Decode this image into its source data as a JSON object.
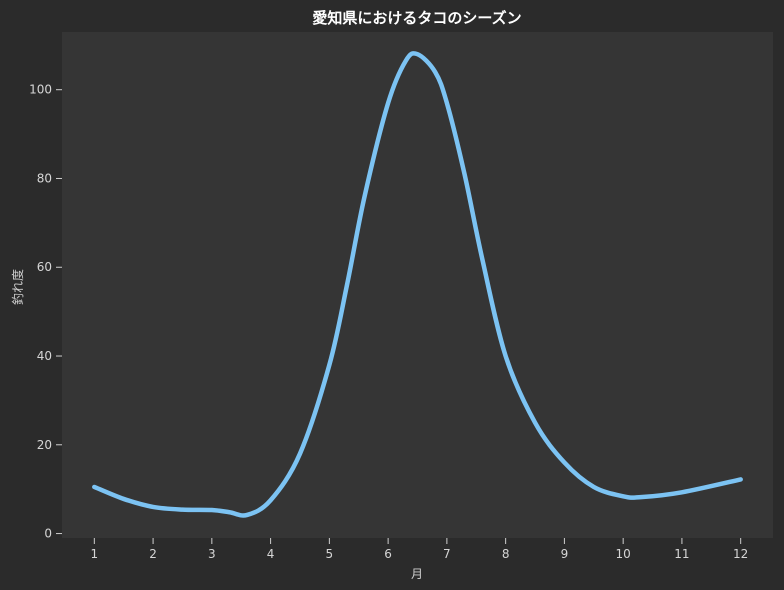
{
  "chart_data": {
    "type": "line",
    "title": "愛知県におけるタコのシーズン",
    "xlabel": "月",
    "ylabel": "釣れ度",
    "x": [
      1,
      2,
      3,
      4,
      5,
      6,
      7,
      8,
      9,
      10,
      11,
      12
    ],
    "x_tick_labels": [
      "1",
      "2",
      "3",
      "4",
      "5",
      "6",
      "7",
      "8",
      "9",
      "10",
      "11",
      "12"
    ],
    "xlim": [
      0.45,
      12.55
    ],
    "ylim": [
      -1,
      113
    ],
    "y_ticks": [
      0,
      20,
      40,
      60,
      80,
      100
    ],
    "series": [
      {
        "color": "#7cc3f3",
        "points": [
          [
            1.0,
            10.5
          ],
          [
            1.5,
            7.8
          ],
          [
            2.0,
            6.0
          ],
          [
            2.5,
            5.4
          ],
          [
            3.0,
            5.3
          ],
          [
            3.3,
            4.8
          ],
          [
            3.6,
            4.2
          ],
          [
            4.0,
            7.5
          ],
          [
            4.5,
            18
          ],
          [
            5.0,
            38
          ],
          [
            5.3,
            56
          ],
          [
            5.6,
            76
          ],
          [
            6.0,
            97
          ],
          [
            6.3,
            106.5
          ],
          [
            6.5,
            108
          ],
          [
            6.8,
            104
          ],
          [
            7.0,
            97
          ],
          [
            7.3,
            81
          ],
          [
            7.6,
            62
          ],
          [
            8.0,
            40
          ],
          [
            8.5,
            25
          ],
          [
            9.0,
            16
          ],
          [
            9.5,
            10.5
          ],
          [
            10.0,
            8.4
          ],
          [
            10.3,
            8.2
          ],
          [
            11.0,
            9.3
          ],
          [
            12.0,
            12.2
          ]
        ]
      }
    ],
    "colors": {
      "background": "#2b2b2b",
      "plot_background": "#353535",
      "line": "#7cc3f3"
    },
    "grid": false,
    "legend": "none"
  }
}
